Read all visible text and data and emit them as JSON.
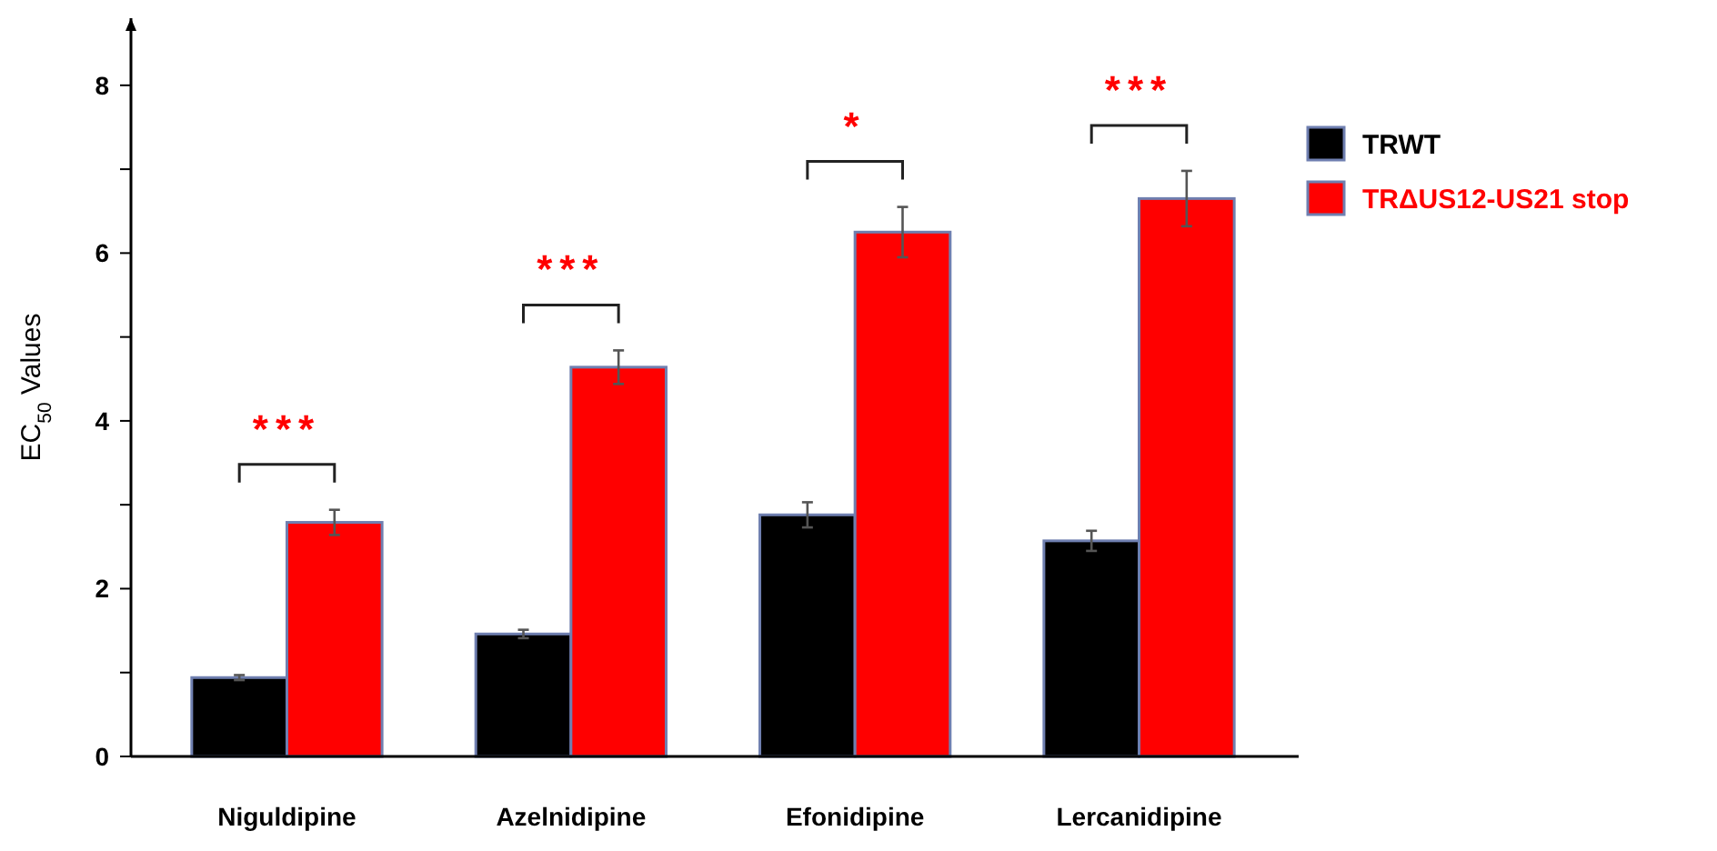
{
  "chart_data": {
    "type": "bar",
    "ylabel": "EC$_{50}$ Values",
    "categories": [
      "Niguldipine",
      "Azelnidipine",
      "Efonidipine",
      "Lercanidipine"
    ],
    "series": [
      {
        "name": "TRWT",
        "color": "#000000",
        "values": [
          0.94,
          1.46,
          2.88,
          2.57
        ],
        "errors": [
          0.03,
          0.05,
          0.15,
          0.12
        ]
      },
      {
        "name": "TRΔUS12-US21 stop",
        "color": "#ff0000",
        "values": [
          2.79,
          4.64,
          6.25,
          6.65
        ],
        "errors": [
          0.15,
          0.2,
          0.3,
          0.33
        ]
      }
    ],
    "ylim": [
      0,
      8.8
    ],
    "yticks": [
      0,
      {
        "value": 1,
        "label": null
      },
      2,
      {
        "value": 3,
        "label": null
      },
      4,
      {
        "value": 5,
        "label": null
      },
      6,
      {
        "value": 7,
        "label": null
      },
      8
    ],
    "legend": "right",
    "annotations": [
      "***",
      "***",
      "*",
      "***"
    ]
  }
}
